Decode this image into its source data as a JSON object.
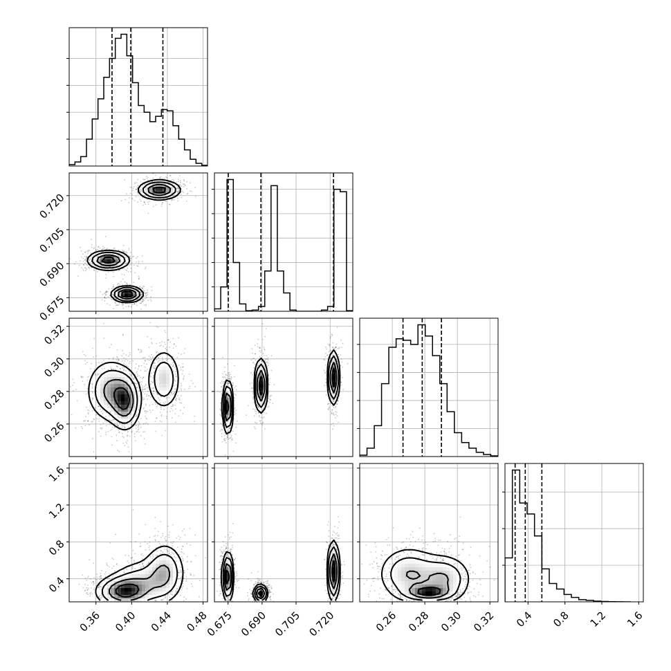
{
  "chart_data": {
    "type": "corner",
    "title": "",
    "grid": true,
    "parameters": [
      {
        "range": [
          0.33,
          0.485
        ],
        "ticks": [
          0.36,
          0.4,
          0.44,
          0.48
        ],
        "tick_labels": [
          "0.36",
          "0.40",
          "0.44",
          "0.48"
        ],
        "quantiles": [
          0.378,
          0.399,
          0.435
        ],
        "histogram": {
          "counts": [
            1,
            3,
            7,
            20,
            35,
            50,
            66,
            80,
            95,
            98,
            82,
            62,
            45,
            40,
            33,
            37,
            42,
            41,
            30,
            20,
            12,
            5,
            2,
            0.5
          ],
          "yticks": [
            20,
            40,
            60,
            80
          ]
        }
      },
      {
        "range": [
          0.669,
          0.73
        ],
        "ticks": [
          0.675,
          0.69,
          0.705,
          0.72
        ],
        "tick_labels": [
          "0.675",
          "0.690",
          "0.705",
          "0.720"
        ],
        "quantiles": [
          0.6751,
          0.6895,
          0.7215
        ],
        "histogram": {
          "counts": [
            2,
            20,
            108,
            40,
            6,
            0.5,
            1,
            4,
            33,
            103,
            33,
            15,
            1,
            0,
            0,
            0,
            0,
            1,
            4,
            100,
            98,
            0.5
          ],
          "yticks": [
            20,
            40,
            60,
            80,
            100
          ]
        }
      },
      {
        "range": [
          0.24,
          0.325
        ],
        "ticks": [
          0.26,
          0.28,
          0.3,
          0.32
        ],
        "tick_labels": [
          "0.26",
          "0.28",
          "0.30",
          "0.32"
        ],
        "quantiles": [
          0.2666,
          0.2784,
          0.2902
        ],
        "histogram": {
          "counts": [
            1,
            6,
            22,
            52,
            78,
            84,
            83,
            80,
            94,
            86,
            72,
            52,
            32,
            17,
            10,
            6,
            3,
            1.5,
            0.5
          ],
          "yticks": [
            20,
            40,
            60,
            80
          ]
        }
      },
      {
        "range": [
          0.15,
          1.65
        ],
        "ticks": [
          0.4,
          0.8,
          1.2,
          1.6
        ],
        "tick_labels": [
          "0.4",
          "0.8",
          "1.2",
          "1.6"
        ],
        "quantiles": [
          0.26,
          0.37,
          0.55
        ],
        "histogram": {
          "counts": [
            12,
            36,
            27,
            24,
            18,
            9,
            5,
            3.5,
            2,
            1.2,
            0.6,
            0.4,
            0.2,
            0.1,
            0.05,
            0.02,
            0.01
          ],
          "bin_start": 0.15,
          "bin_width": 0.08,
          "yticks": [
            10,
            20,
            30
          ]
        }
      }
    ],
    "clusters": [
      {
        "centers": [
          [
            0.431,
            0.7225
          ],
          [
            0.374,
            0.6915
          ],
          [
            0.395,
            0.6765
          ]
        ],
        "sigmas": [
          [
            0.012,
            0.0022
          ],
          [
            0.012,
            0.0022
          ],
          [
            0.009,
            0.0018
          ]
        ],
        "weights": [
          1,
          1,
          1.1
        ]
      },
      {
        "centers": [
          [
            0.393,
            0.2735
          ],
          [
            0.376,
            0.2805
          ],
          [
            0.436,
            0.2875
          ]
        ],
        "sigmas": [
          [
            0.009,
            0.009
          ],
          [
            0.014,
            0.01
          ],
          [
            0.01,
            0.01
          ]
        ],
        "weights": [
          1.2,
          1,
          0.85
        ]
      },
      {
        "centers": [
          [
            0.6749,
            0.2705
          ],
          [
            0.6895,
            0.2835
          ],
          [
            0.7215,
            0.2885
          ]
        ],
        "sigmas": [
          [
            0.0012,
            0.0085
          ],
          [
            0.0015,
            0.0085
          ],
          [
            0.0013,
            0.0085
          ]
        ],
        "weights": [
          1,
          1,
          1
        ]
      },
      {
        "centers": [
          [
            0.39,
            0.26
          ],
          [
            0.437,
            0.47
          ],
          [
            0.41,
            0.35
          ]
        ],
        "sigmas": [
          [
            0.016,
            0.09
          ],
          [
            0.012,
            0.17
          ],
          [
            0.018,
            0.14
          ]
        ],
        "weights": [
          1.3,
          0.9,
          0.7
        ]
      },
      {
        "centers": [
          [
            0.6749,
            0.42
          ],
          [
            0.6893,
            0.24
          ],
          [
            0.7215,
            0.48
          ]
        ],
        "sigmas": [
          [
            0.0013,
            0.14
          ],
          [
            0.0016,
            0.05
          ],
          [
            0.0014,
            0.17
          ]
        ],
        "weights": [
          1,
          1,
          1
        ]
      },
      {
        "centers": [
          [
            0.282,
            0.25
          ],
          [
            0.27,
            0.45
          ],
          [
            0.292,
            0.4
          ]
        ],
        "sigmas": [
          [
            0.008,
            0.05
          ],
          [
            0.01,
            0.16
          ],
          [
            0.009,
            0.14
          ]
        ],
        "weights": [
          1.1,
          0.8,
          0.8
        ]
      }
    ]
  }
}
